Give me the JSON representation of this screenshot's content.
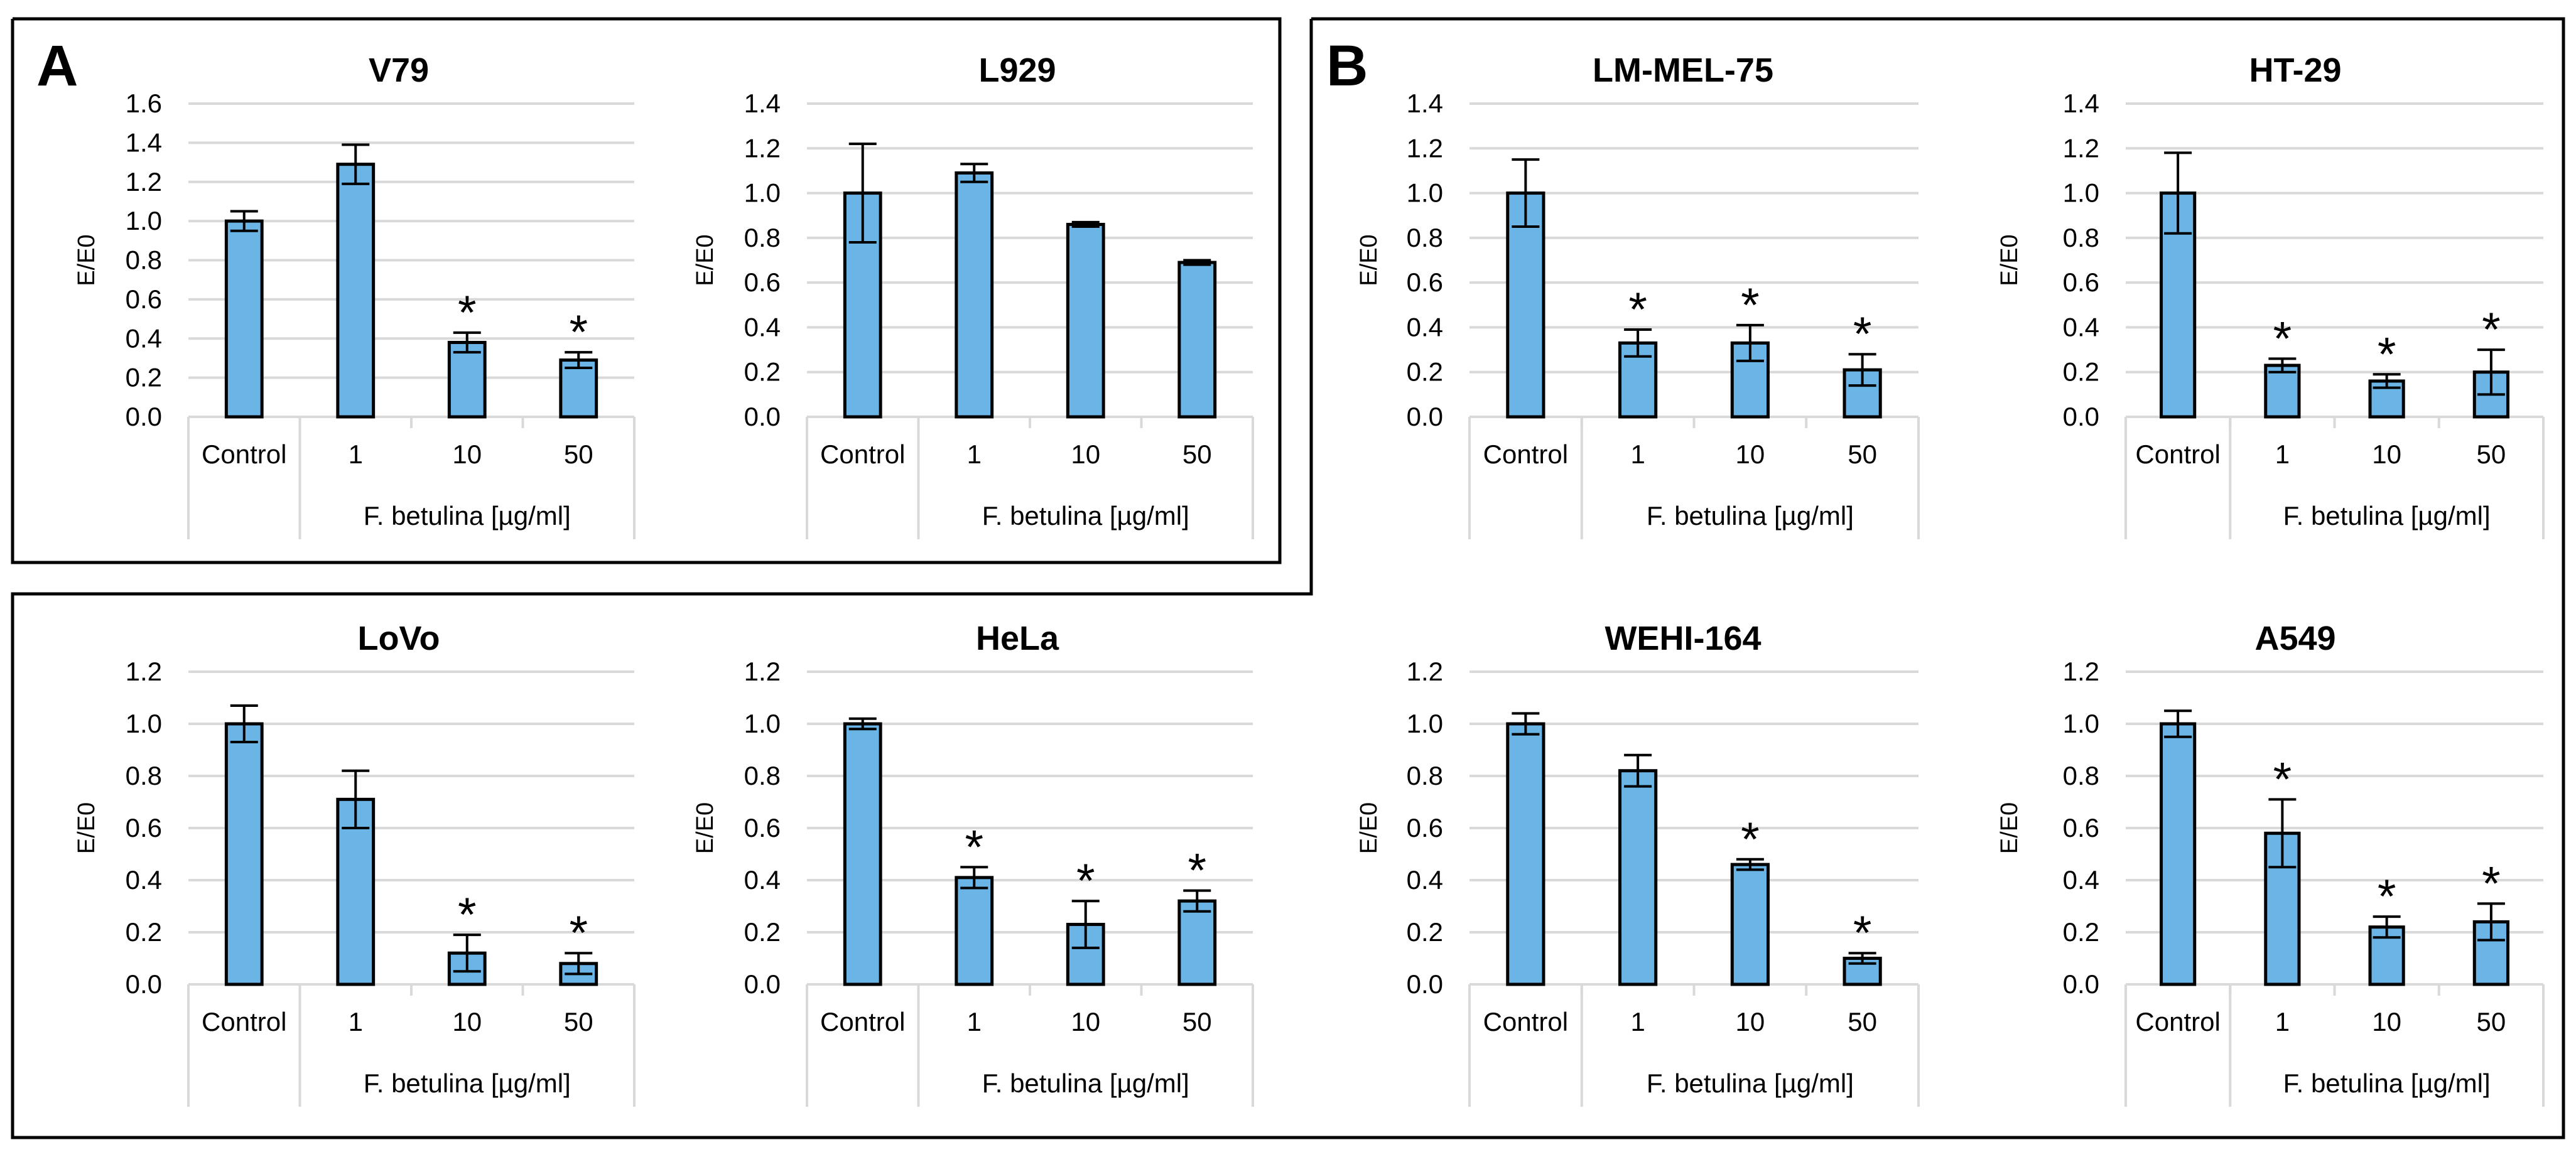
{
  "panels": [
    {
      "letter": "A"
    },
    {
      "letter": "B"
    }
  ],
  "colors": {
    "bar": "#6bb5e6",
    "bar_edge": "#000000",
    "grid": "#d9d9d9",
    "axis": "#d9d9d9",
    "frame": "#000000"
  },
  "chart_data": [
    {
      "type": "bar",
      "title": "V79",
      "ylabel": "E/E0",
      "ylim": [
        0,
        1.6
      ],
      "yticks": [
        "0.0",
        "0.2",
        "0.4",
        "0.6",
        "0.8",
        "1.0",
        "1.2",
        "1.4",
        "1.6"
      ],
      "categories": [
        "Control",
        "1",
        "10",
        "50"
      ],
      "group_label": "F. betulina [µg/ml]",
      "values": [
        1.0,
        1.29,
        0.38,
        0.29
      ],
      "errors": [
        0.05,
        0.1,
        0.05,
        0.04
      ],
      "significance": [
        "",
        "",
        "*",
        "*"
      ]
    },
    {
      "type": "bar",
      "title": "L929",
      "ylabel": "E/E0",
      "ylim": [
        0,
        1.4
      ],
      "yticks": [
        "0.0",
        "0.2",
        "0.4",
        "0.6",
        "0.8",
        "1.0",
        "1.2",
        "1.4"
      ],
      "categories": [
        "Control",
        "1",
        "10",
        "50"
      ],
      "group_label": "F. betulina [µg/ml]",
      "values": [
        1.0,
        1.09,
        0.86,
        0.69
      ],
      "errors": [
        0.22,
        0.04,
        0.01,
        0.01
      ],
      "significance": [
        "",
        "",
        "",
        ""
      ]
    },
    {
      "type": "bar",
      "title": "LM-MEL-75",
      "ylabel": "E/E0",
      "ylim": [
        0,
        1.4
      ],
      "yticks": [
        "0.0",
        "0.2",
        "0.4",
        "0.6",
        "0.8",
        "1.0",
        "1.2",
        "1.4"
      ],
      "categories": [
        "Control",
        "1",
        "10",
        "50"
      ],
      "group_label": "F. betulina [µg/ml]",
      "values": [
        1.0,
        0.33,
        0.33,
        0.21
      ],
      "errors": [
        0.15,
        0.06,
        0.08,
        0.07
      ],
      "significance": [
        "",
        "*",
        "*",
        "*"
      ]
    },
    {
      "type": "bar",
      "title": "HT-29",
      "ylabel": "E/E0",
      "ylim": [
        0,
        1.4
      ],
      "yticks": [
        "0.0",
        "0.2",
        "0.4",
        "0.6",
        "0.8",
        "1.0",
        "1.2",
        "1.4"
      ],
      "categories": [
        "Control",
        "1",
        "10",
        "50"
      ],
      "group_label": "F. betulina [µg/ml]",
      "values": [
        1.0,
        0.23,
        0.16,
        0.2
      ],
      "errors": [
        0.18,
        0.03,
        0.03,
        0.1
      ],
      "significance": [
        "",
        "*",
        "*",
        "*"
      ]
    },
    {
      "type": "bar",
      "title": "LoVo",
      "ylabel": "E/E0",
      "ylim": [
        0,
        1.2
      ],
      "yticks": [
        "0.0",
        "0.2",
        "0.4",
        "0.6",
        "0.8",
        "1.0",
        "1.2"
      ],
      "categories": [
        "Control",
        "1",
        "10",
        "50"
      ],
      "group_label": "F. betulina [µg/ml]",
      "values": [
        1.0,
        0.71,
        0.12,
        0.08
      ],
      "errors": [
        0.07,
        0.11,
        0.07,
        0.04
      ],
      "significance": [
        "",
        "",
        "*",
        "*"
      ]
    },
    {
      "type": "bar",
      "title": "HeLa",
      "ylabel": "E/E0",
      "ylim": [
        0,
        1.2
      ],
      "yticks": [
        "0.0",
        "0.2",
        "0.4",
        "0.6",
        "0.8",
        "1.0",
        "1.2"
      ],
      "categories": [
        "Control",
        "1",
        "10",
        "50"
      ],
      "group_label": "F. betulina [µg/ml]",
      "values": [
        1.0,
        0.41,
        0.23,
        0.32
      ],
      "errors": [
        0.02,
        0.04,
        0.09,
        0.04
      ],
      "significance": [
        "",
        "*",
        "*",
        "*"
      ]
    },
    {
      "type": "bar",
      "title": "WEHI-164",
      "ylabel": "E/E0",
      "ylim": [
        0,
        1.2
      ],
      "yticks": [
        "0.0",
        "0.2",
        "0.4",
        "0.6",
        "0.8",
        "1.0",
        "1.2"
      ],
      "categories": [
        "Control",
        "1",
        "10",
        "50"
      ],
      "group_label": "F. betulina [µg/ml]",
      "values": [
        1.0,
        0.82,
        0.46,
        0.1
      ],
      "errors": [
        0.04,
        0.06,
        0.02,
        0.02
      ],
      "significance": [
        "",
        "",
        "*",
        "*"
      ]
    },
    {
      "type": "bar",
      "title": "A549",
      "ylabel": "E/E0",
      "ylim": [
        0,
        1.2
      ],
      "yticks": [
        "0.0",
        "0.2",
        "0.4",
        "0.6",
        "0.8",
        "1.0",
        "1.2"
      ],
      "categories": [
        "Control",
        "1",
        "10",
        "50"
      ],
      "group_label": "F. betulina [µg/ml]",
      "values": [
        1.0,
        0.58,
        0.22,
        0.24
      ],
      "errors": [
        0.05,
        0.13,
        0.04,
        0.07
      ],
      "significance": [
        "",
        "*",
        "*",
        "*"
      ]
    }
  ]
}
